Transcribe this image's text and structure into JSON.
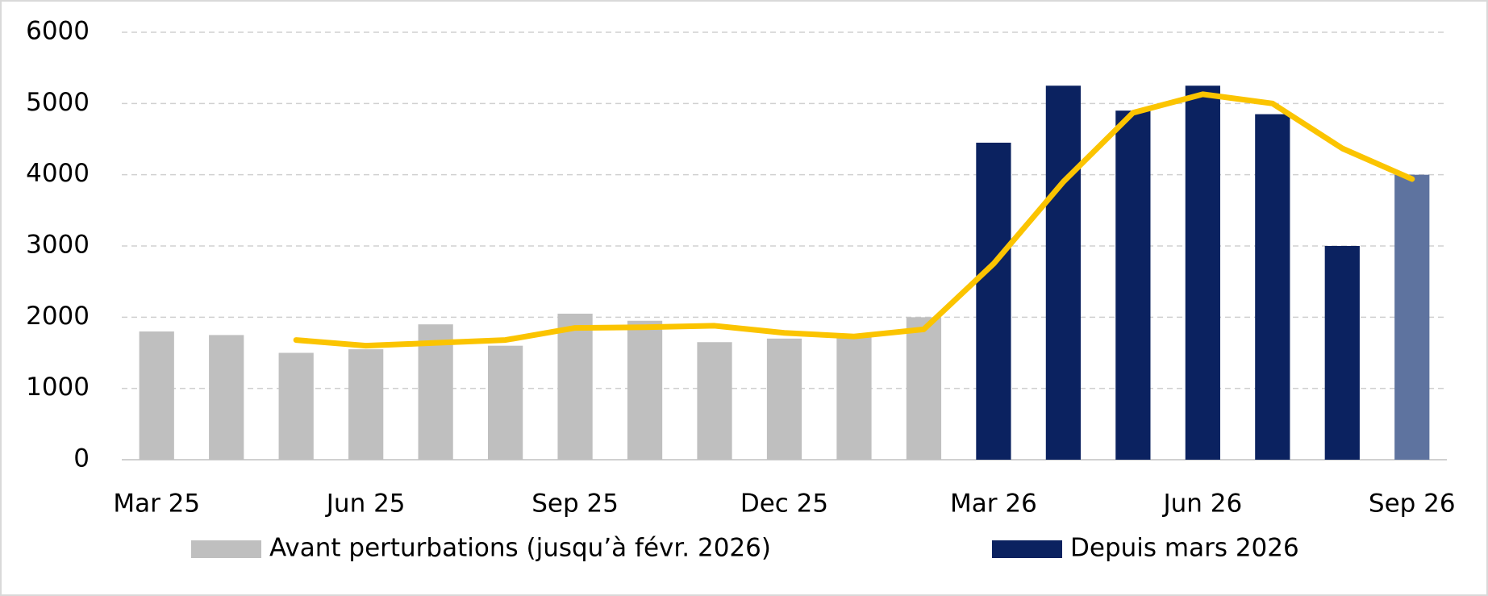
{
  "chart_data": {
    "type": "bar",
    "categories": [
      "Mar 25",
      null,
      null,
      "Jun 25",
      null,
      null,
      "Sep 25",
      null,
      null,
      "Dec 25",
      null,
      null,
      "Mar 26",
      null,
      null,
      "Jun 26",
      null,
      null,
      "Sep 26"
    ],
    "series": [
      {
        "name": "Avant perturbations (jusqu’à févr. 2026)",
        "color": "#bfbfbf",
        "type": "bar",
        "values": [
          1800,
          1750,
          1500,
          1550,
          1900,
          1600,
          2050,
          1950,
          1650,
          1700,
          1750,
          2000,
          null,
          null,
          null,
          null,
          null,
          null,
          null
        ]
      },
      {
        "name": "Depuis mars 2026",
        "color": "#0b2260",
        "type": "bar",
        "values": [
          null,
          null,
          null,
          null,
          null,
          null,
          null,
          null,
          null,
          null,
          null,
          null,
          4450,
          5250,
          4900,
          5250,
          4850,
          3000,
          4000
        ],
        "colors": [
          null,
          null,
          null,
          null,
          null,
          null,
          null,
          null,
          null,
          null,
          null,
          null,
          "#0b2260",
          "#0b2260",
          "#0b2260",
          "#0b2260",
          "#0b2260",
          "#0b2260",
          "#5e739f"
        ]
      },
      {
        "color": "#fbc400",
        "type": "line",
        "values": [
          null,
          null,
          1680,
          1600,
          1640,
          1680,
          1850,
          1860,
          1880,
          1780,
          1730,
          1830,
          2750,
          3900,
          4870,
          5130,
          5000,
          4370,
          3940
        ]
      }
    ],
    "ylim": [
      0,
      6000
    ],
    "yticks": [
      0,
      1000,
      2000,
      3000,
      4000,
      5000,
      6000
    ],
    "grid": true
  }
}
